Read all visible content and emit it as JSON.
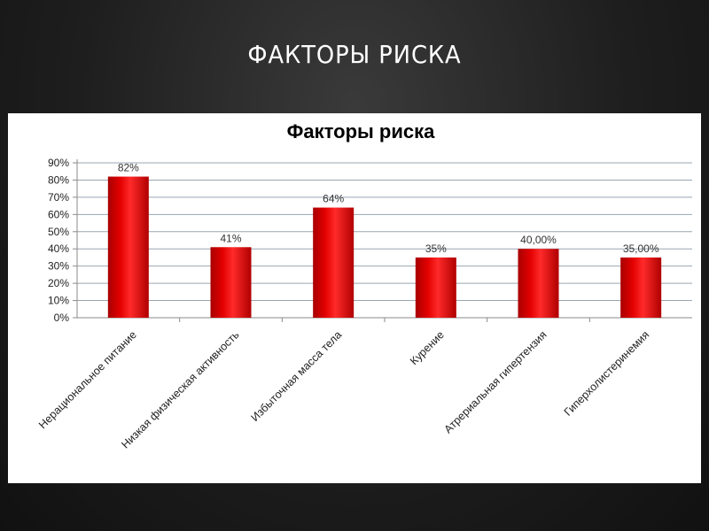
{
  "slide": {
    "title": "ФАКТОРЫ РИСКА"
  },
  "chart_data": {
    "type": "bar",
    "title": "Факторы риска",
    "categories": [
      "Нерациональное питание",
      "Низкая физическая активность",
      "Избыточная масса тела",
      "Курение",
      "Атрериальная гипертензия",
      "Гиперхолистеринемия"
    ],
    "values": [
      82,
      41,
      64,
      35,
      40,
      35
    ],
    "data_labels": [
      "82%",
      "41%",
      "64%",
      "35%",
      "40,00%",
      "35,00%"
    ],
    "ylim": [
      0,
      90
    ],
    "y_ticks": [
      "0%",
      "10%",
      "20%",
      "30%",
      "40%",
      "50%",
      "60%",
      "70%",
      "80%",
      "90%"
    ],
    "grid": true,
    "legend": "none",
    "bar_color": "#e30000"
  }
}
